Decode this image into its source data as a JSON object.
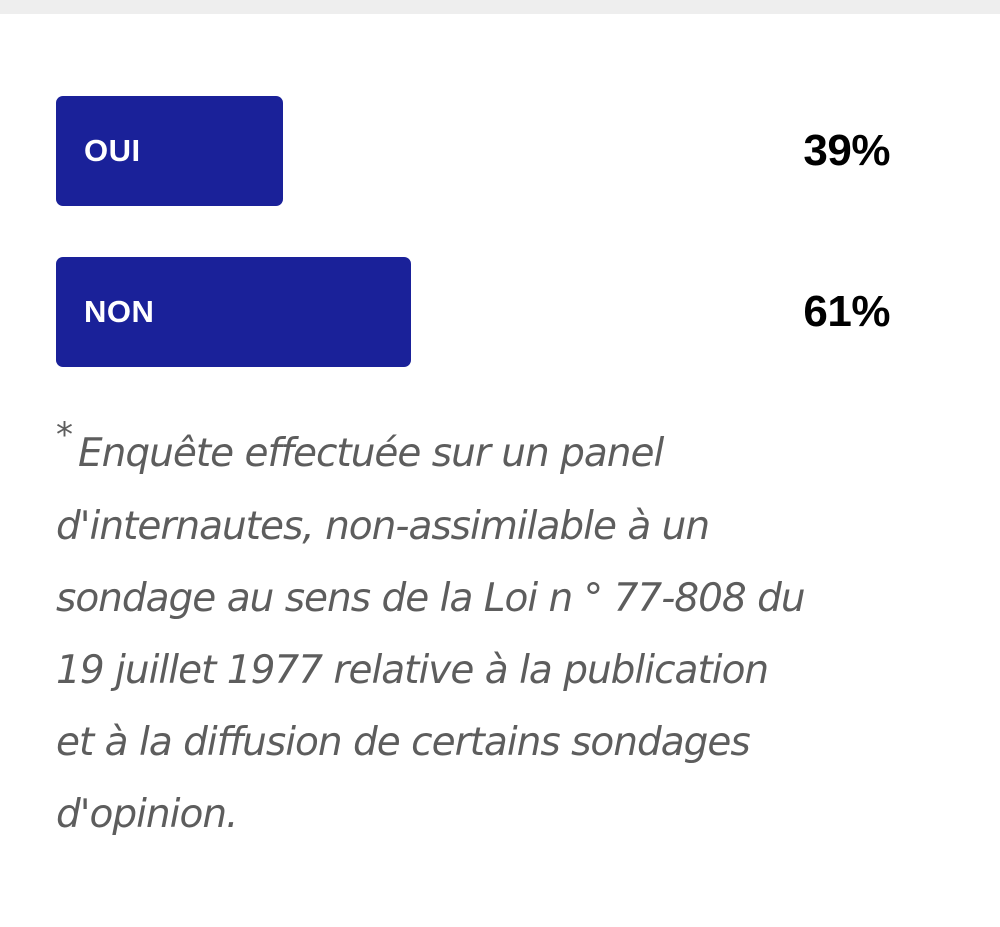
{
  "poll": {
    "bar_color": "#1a2199",
    "options": [
      {
        "label": "OUI",
        "percent_text": "39%",
        "value": 39
      },
      {
        "label": "NON",
        "percent_text": "61%",
        "value": 61
      }
    ]
  },
  "footnote": {
    "marker": "*",
    "text": "Enquête effectuée sur un panel d'internautes, non-assimilable à un sondage au sens de la Loi n ° 77-808 du 19 juillet 1977 relative à la publication et à la diffusion de certains sondages d'opinion."
  }
}
